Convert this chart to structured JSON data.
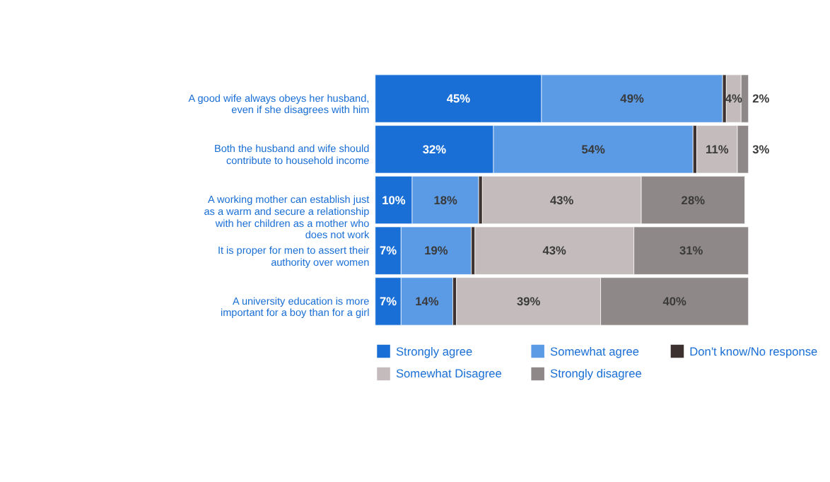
{
  "chart_data": {
    "type": "bar",
    "orientation": "horizontal",
    "stacked": true,
    "legend": "bottom",
    "categories": [
      "A good wife always obeys her husband, even if she disagrees with him",
      "Both the husband and wife should contribute to household income",
      "A working mother can establish just as a warm and secure a relationship with her children as a mother who does not work",
      "It is proper for men to assert their authority over women",
      "A university education is more important for a boy than for a girl"
    ],
    "series": [
      {
        "name": "Strongly agree",
        "color": "#1a6fd6",
        "values": [
          45,
          32,
          10,
          7,
          7
        ],
        "value_labels": [
          "45%",
          "32%",
          "10%",
          "7%",
          "7%"
        ]
      },
      {
        "name": "Somewhat agree",
        "color": "#5b9be6",
        "values": [
          49,
          54,
          18,
          19,
          14
        ],
        "value_labels": [
          "49%",
          "54%",
          "18%",
          "19%",
          "14%"
        ]
      },
      {
        "name": "Don't know/No response",
        "color": "#3d3230",
        "values": [
          1,
          1,
          1,
          1,
          1
        ],
        "value_labels": [
          null,
          null,
          null,
          null,
          null
        ]
      },
      {
        "name": "Somewhat Disagree",
        "color": "#c4bcbc",
        "values": [
          4,
          11,
          43,
          43,
          39
        ],
        "value_labels": [
          "4%",
          "11%",
          "43%",
          "43%",
          "39%"
        ]
      },
      {
        "name": "Strongly disagree",
        "color": "#8f8888",
        "values": [
          2,
          3,
          28,
          31,
          40
        ],
        "value_labels": [
          "2%",
          "3%",
          "28%",
          "31%",
          "40%"
        ]
      }
    ]
  }
}
